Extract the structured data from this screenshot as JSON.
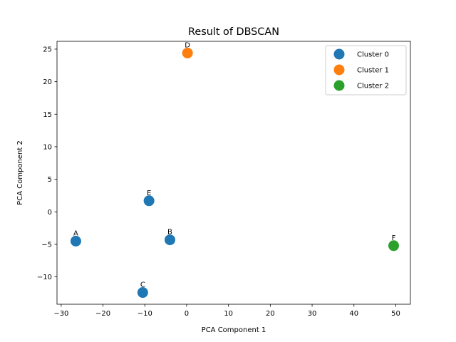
{
  "chart_data": {
    "type": "scatter",
    "title": "Result of DBSCAN",
    "xlabel": "PCA Component 1",
    "ylabel": "PCA Component 2",
    "xlim": [
      -31,
      53.5
    ],
    "ylim": [
      -14.2,
      26.2
    ],
    "xticks": [
      -30,
      -20,
      -10,
      0,
      10,
      20,
      30,
      40,
      50
    ],
    "yticks": [
      -10,
      -5,
      0,
      5,
      10,
      15,
      20,
      25
    ],
    "grid": false,
    "legend_position": "top-right",
    "series": [
      {
        "name": "Cluster 0",
        "color": "#1f77b4",
        "points": [
          {
            "label": "A",
            "x": -26.5,
            "y": -4.5
          },
          {
            "label": "B",
            "x": -4.0,
            "y": -4.3
          },
          {
            "label": "C",
            "x": -10.5,
            "y": -12.4
          },
          {
            "label": "E",
            "x": -9.0,
            "y": 1.7
          }
        ]
      },
      {
        "name": "Cluster 1",
        "color": "#ff7f0e",
        "points": [
          {
            "label": "D",
            "x": 0.2,
            "y": 24.4
          }
        ]
      },
      {
        "name": "Cluster 2",
        "color": "#2ca02c",
        "points": [
          {
            "label": "F",
            "x": 49.5,
            "y": -5.2
          }
        ]
      }
    ]
  }
}
